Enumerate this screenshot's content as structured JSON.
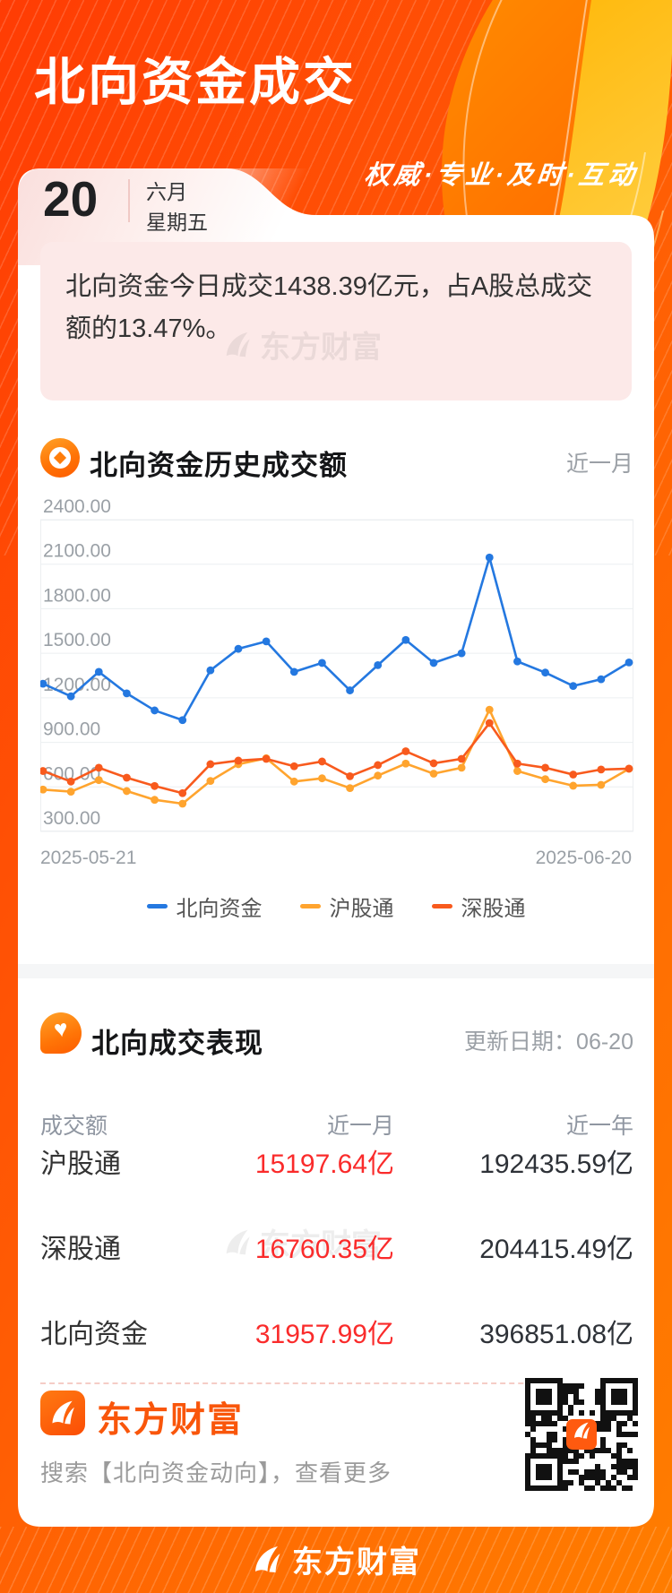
{
  "header": {
    "title": "北向资金成交",
    "slogan": "权威·专业·及时·互动",
    "date": {
      "day": "20",
      "month": "六月",
      "weekday": "星期五"
    }
  },
  "notice": {
    "text": "北向资金今日成交1438.39亿元，占A股总成交额的13.47%。"
  },
  "chart_section": {
    "title": "北向资金历史成交额",
    "range_label": "近一月"
  },
  "chart_data": {
    "type": "line",
    "title": "北向资金历史成交额",
    "x_labels_shown": [
      "2025-05-21",
      "2025-06-20"
    ],
    "num_points": 22,
    "ylim": [
      300,
      2400
    ],
    "yticks": [
      2400,
      2100,
      1800,
      1500,
      1200,
      900,
      600,
      300
    ],
    "grid": true,
    "legend_position": "bottom",
    "series": [
      {
        "name": "北向资金",
        "color": "#2478e0",
        "values": [
          1295,
          1210,
          1375,
          1230,
          1115,
          1050,
          1385,
          1530,
          1580,
          1375,
          1435,
          1250,
          1420,
          1590,
          1435,
          1500,
          2145,
          1445,
          1370,
          1280,
          1325,
          1438.39
        ]
      },
      {
        "name": "沪股通",
        "color": "#ffa42e",
        "values": [
          582,
          568,
          646,
          572,
          513,
          487,
          640,
          753,
          793,
          636,
          658,
          592,
          676,
          757,
          689,
          729,
          1120,
          707,
          652,
          608,
          614,
          722
        ]
      },
      {
        "name": "深股通",
        "color": "#f85a1d",
        "values": [
          707,
          636,
          729,
          662,
          606,
          558,
          753,
          777,
          789,
          739,
          771,
          672,
          747,
          840,
          759,
          789,
          1030,
          757,
          729,
          683,
          717,
          723
        ]
      }
    ]
  },
  "table_section": {
    "title": "北向成交表现",
    "update_label": "更新日期：06-20",
    "columns": [
      "成交额",
      "近一月",
      "近一年"
    ],
    "rows": [
      {
        "name": "沪股通",
        "month": "15197.64亿",
        "year": "192435.59亿"
      },
      {
        "name": "深股通",
        "month": "16760.35亿",
        "year": "204415.49亿"
      },
      {
        "name": "北向资金",
        "month": "31957.99亿",
        "year": "396851.08亿"
      }
    ]
  },
  "footer": {
    "brand": "东方财富",
    "search_hint": "搜索【北向资金动向】，查看更多"
  },
  "bottom": {
    "brand": "东方财富"
  },
  "watermark": "东方财富",
  "colors": {
    "background_orange": "#ff5505",
    "notice_pink": "#fce9e8",
    "value_red": "#fa2b2b",
    "line_blue": "#2478e0",
    "line_orange_light": "#ffa42e",
    "line_orange_deep": "#f85a1d",
    "brand_orange": "#f9560b"
  }
}
